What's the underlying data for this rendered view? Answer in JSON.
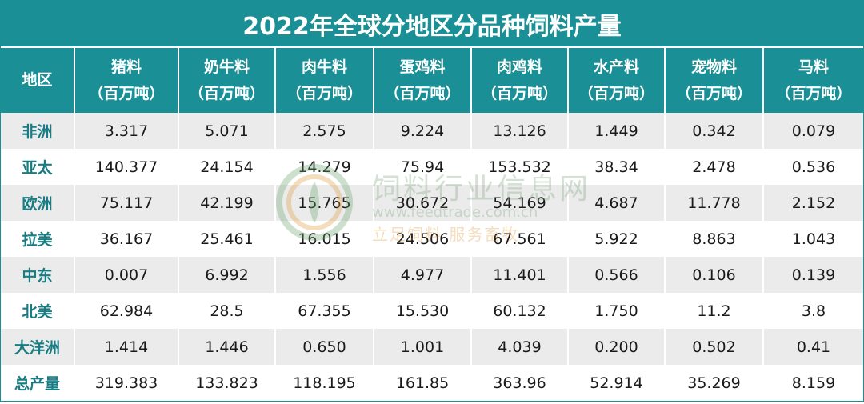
{
  "title": "2022年全球分地区分品种饲料产量",
  "header": {
    "region": "地区",
    "columns": [
      {
        "name": "猪料",
        "unit": "（百万吨）"
      },
      {
        "name": "奶牛料",
        "unit": "（百万吨）"
      },
      {
        "name": "肉牛料",
        "unit": "（百万吨）"
      },
      {
        "name": "蛋鸡料",
        "unit": "（百万吨）"
      },
      {
        "name": "肉鸡料",
        "unit": "（百万吨）"
      },
      {
        "name": "水产料",
        "unit": "（百万吨）"
      },
      {
        "name": "宠物料",
        "unit": "（百万吨）"
      },
      {
        "name": "马料",
        "unit": "（百万吨）"
      }
    ]
  },
  "rows": [
    {
      "region": "非洲",
      "values": [
        "3.317",
        "5.071",
        "2.575",
        "9.224",
        "13.126",
        "1.449",
        "0.342",
        "0.079"
      ]
    },
    {
      "region": "亚太",
      "values": [
        "140.377",
        "24.154",
        "14.279",
        "75.94",
        "153.532",
        "38.34",
        "2.478",
        "0.536"
      ]
    },
    {
      "region": "欧洲",
      "values": [
        "75.117",
        "42.199",
        "15.765",
        "30.672",
        "54.169",
        "4.687",
        "11.778",
        "2.152"
      ]
    },
    {
      "region": "拉美",
      "values": [
        "36.167",
        "25.461",
        "16.015",
        "24.506",
        "67.561",
        "5.922",
        "8.863",
        "1.043"
      ]
    },
    {
      "region": "中东",
      "values": [
        "0.007",
        "6.992",
        "1.556",
        "4.977",
        "11.401",
        "0.566",
        "0.106",
        "0.139"
      ]
    },
    {
      "region": "北美",
      "values": [
        "62.984",
        "28.5",
        "67.355",
        "15.530",
        "60.132",
        "1.750",
        "11.2",
        "3.8"
      ]
    },
    {
      "region": "大洋洲",
      "values": [
        "1.414",
        "1.446",
        "0.650",
        "1.001",
        "4.039",
        "0.200",
        "0.502",
        "0.41"
      ]
    },
    {
      "region": "总产量",
      "values": [
        "319.383",
        "133.823",
        "118.195",
        "161.85",
        "363.96",
        "52.914",
        "35.269",
        "8.159"
      ]
    }
  ],
  "watermark": {
    "name": "饲料行业信息网",
    "url": "www.feedtrade.com.cn",
    "slogan": "立足饲料   服务畜牧"
  },
  "colors": {
    "header_bg": "#1a8f96",
    "region_text": "#1a7c83",
    "stripe": "#ebebeb"
  }
}
